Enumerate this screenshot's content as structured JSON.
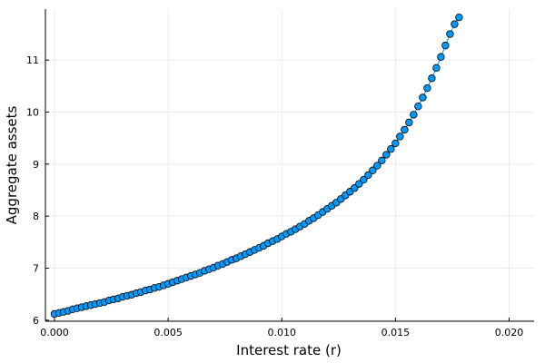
{
  "chart_data": {
    "type": "scatter",
    "title": "",
    "xlabel": "Interest rate (r)",
    "ylabel": "Aggregate assets",
    "xlim": [
      -0.0004,
      0.0211
    ],
    "ylim": [
      5.98,
      11.98
    ],
    "x_ticks": [
      0.0,
      0.005,
      0.01,
      0.015,
      0.02
    ],
    "x_tick_labels": [
      "0.000",
      "0.005",
      "0.010",
      "0.015",
      "0.020"
    ],
    "y_ticks": [
      6,
      7,
      8,
      9,
      10,
      11
    ],
    "y_tick_labels": [
      "6",
      "7",
      "8",
      "9",
      "10",
      "11"
    ],
    "grid": true,
    "legend": "none",
    "colors": {
      "marker_fill": "#009AFA",
      "marker_stroke": "#000000",
      "line": "#009AFA",
      "grid": "#EBEBEB",
      "axis": "#000000"
    },
    "series": [
      {
        "x": [
          0.0,
          0.0002,
          0.0004,
          0.0006,
          0.0008,
          0.001,
          0.0012,
          0.0014,
          0.0016,
          0.0018,
          0.002,
          0.0022,
          0.0024,
          0.0026,
          0.0028,
          0.003,
          0.0032,
          0.0034,
          0.0036,
          0.0038,
          0.004,
          0.0042,
          0.0044,
          0.0046,
          0.0048,
          0.005,
          0.0052,
          0.0054,
          0.0056,
          0.0058,
          0.006,
          0.0062,
          0.0064,
          0.0066,
          0.0068,
          0.007,
          0.0072,
          0.0074,
          0.0076,
          0.0078,
          0.008,
          0.0082,
          0.0084,
          0.0086,
          0.0088,
          0.009,
          0.0092,
          0.0094,
          0.0096,
          0.0098,
          0.01,
          0.0102,
          0.0104,
          0.0106,
          0.0108,
          0.011,
          0.0112,
          0.0114,
          0.0116,
          0.0118,
          0.012,
          0.0122,
          0.0124,
          0.0126,
          0.0128,
          0.013,
          0.0132,
          0.0134,
          0.0136,
          0.0138,
          0.014,
          0.0142,
          0.0144,
          0.0146,
          0.0148,
          0.015,
          0.0152,
          0.0154,
          0.0156,
          0.0158,
          0.016,
          0.0162,
          0.0164,
          0.0166,
          0.0168,
          0.017,
          0.0172,
          0.0174,
          0.0176,
          0.0178
        ],
        "y": [
          6.12,
          6.14,
          6.16,
          6.18,
          6.21,
          6.23,
          6.25,
          6.27,
          6.29,
          6.31,
          6.33,
          6.35,
          6.38,
          6.4,
          6.42,
          6.45,
          6.47,
          6.49,
          6.52,
          6.54,
          6.57,
          6.59,
          6.62,
          6.64,
          6.67,
          6.7,
          6.73,
          6.76,
          6.79,
          6.82,
          6.85,
          6.88,
          6.91,
          6.95,
          6.98,
          7.01,
          7.05,
          7.08,
          7.12,
          7.16,
          7.19,
          7.23,
          7.27,
          7.31,
          7.35,
          7.39,
          7.43,
          7.48,
          7.52,
          7.56,
          7.61,
          7.66,
          7.7,
          7.75,
          7.8,
          7.85,
          7.91,
          7.96,
          8.02,
          8.08,
          8.14,
          8.2,
          8.26,
          8.33,
          8.4,
          8.47,
          8.54,
          8.62,
          8.7,
          8.79,
          8.88,
          8.97,
          9.07,
          9.18,
          9.29,
          9.4,
          9.53,
          9.66,
          9.8,
          9.95,
          10.11,
          10.28,
          10.46,
          10.65,
          10.85,
          11.06,
          11.28,
          11.5,
          11.69,
          11.82
        ]
      }
    ]
  }
}
